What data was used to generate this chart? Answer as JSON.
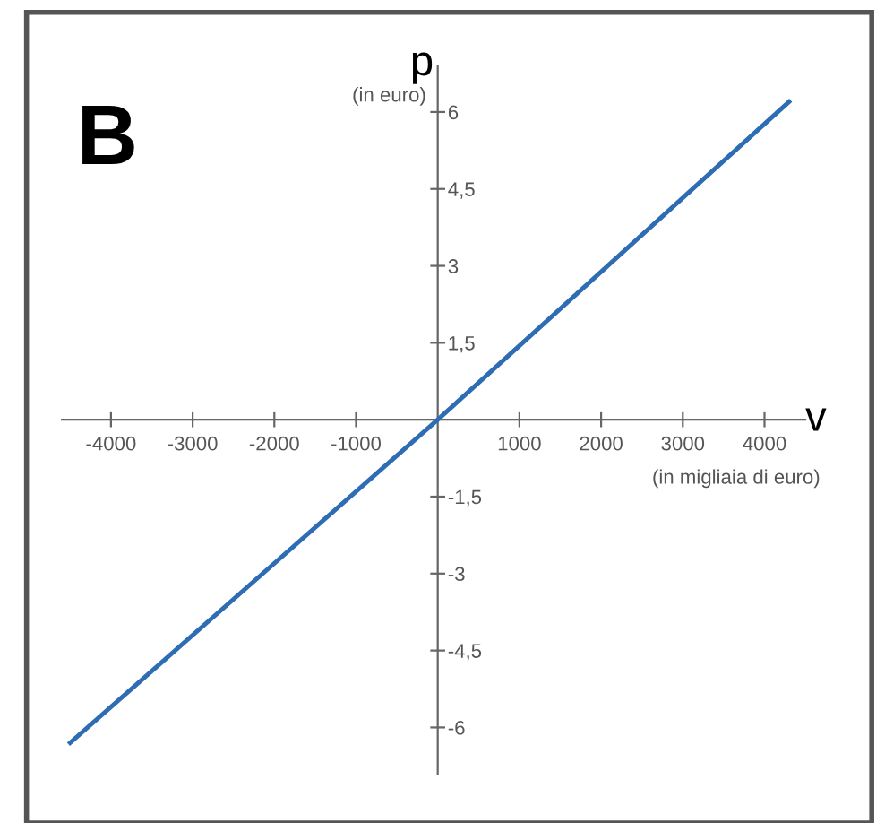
{
  "chart_data": {
    "type": "line",
    "title": "B",
    "xlabel": "v",
    "ylabel": "p",
    "annotations": [
      "(in migliaia di euro)",
      "(in euro)"
    ],
    "series": [
      {
        "color": "#2e6db4",
        "x": [
          -4500,
          0,
          4300
        ],
        "values": [
          -6.3,
          0,
          6.2
        ]
      }
    ],
    "xlim": [
      -4600,
      4500
    ],
    "ylim": [
      -6.9,
      6.9
    ],
    "xticks": [
      -4000,
      -3000,
      -2000,
      -1000,
      1000,
      2000,
      3000,
      4000
    ],
    "yticks": [
      -6,
      {
        "value": -4.5,
        "label": "-4,5"
      },
      -3,
      {
        "value": -1.5,
        "label": "-1,5"
      },
      {
        "value": 1.5,
        "label": "1,5"
      },
      3,
      {
        "value": 4.5,
        "label": "4,5"
      },
      6
    ],
    "grid": false,
    "legend": false,
    "marker": "none",
    "line_style": "solid"
  }
}
